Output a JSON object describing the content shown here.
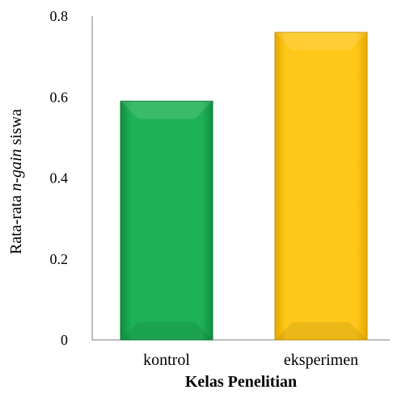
{
  "chart_data": {
    "type": "bar",
    "title": "",
    "categories": [
      "kontrol",
      "eksperimen"
    ],
    "values": [
      0.59,
      0.76
    ],
    "xlabel": "Kelas Penelitian",
    "ylabel": {
      "prefix": "Rata-rata ",
      "italic": "n-gain",
      "suffix": " siswa"
    },
    "ylim": [
      0,
      0.8
    ],
    "yticks": [
      "0",
      "0.2",
      "0.4",
      "0.6",
      "0.8"
    ],
    "grid": false,
    "legend": "none",
    "colors": [
      "#1fb157",
      "#ffc81a"
    ]
  }
}
